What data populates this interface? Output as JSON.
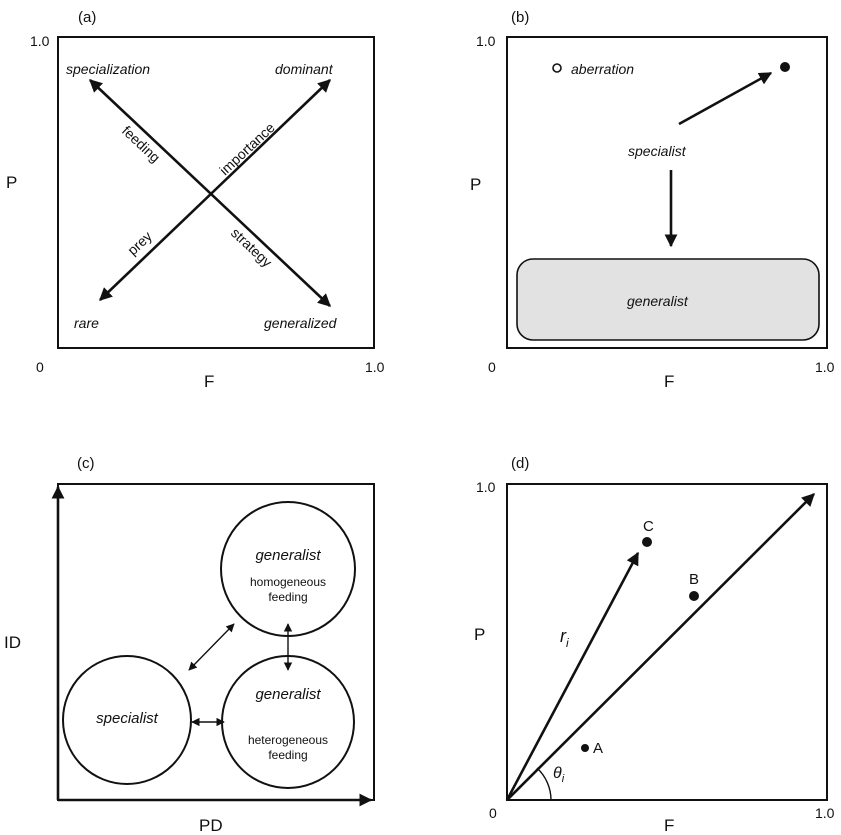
{
  "panel_a": {
    "label": "(a)",
    "y_axis": "P",
    "x_axis": "F",
    "y_max": "1.0",
    "x_min": "0",
    "x_max": "1.0",
    "corner_top_left": "specialization",
    "corner_top_right": "dominant",
    "corner_bottom_left": "rare",
    "corner_bottom_right": "generalized",
    "diag_feeding": "feeding",
    "diag_importance": "importance",
    "diag_prey": "prey",
    "diag_strategy": "strategy"
  },
  "panel_b": {
    "label": "(b)",
    "y_axis": "P",
    "x_axis": "F",
    "y_max": "1.0",
    "x_min": "0",
    "x_max": "1.0",
    "aberration": "aberration",
    "specialist": "specialist",
    "generalist": "generalist"
  },
  "panel_c": {
    "label": "(c)",
    "y_axis": "ID",
    "x_axis": "PD",
    "top_title": "generalist",
    "top_sub": "homogeneous",
    "top_sub2": "feeding",
    "left_title": "specialist",
    "right_title": "generalist",
    "right_sub": "heterogeneous",
    "right_sub2": "feeding"
  },
  "panel_d": {
    "label": "(d)",
    "y_axis": "P",
    "x_axis": "F",
    "y_max": "1.0",
    "x_min": "0",
    "x_max": "1.0",
    "point_a": "A",
    "point_b": "B",
    "point_c": "C",
    "r_label": "r",
    "r_sub": "i",
    "theta_label": "θ",
    "theta_sub": "i"
  },
  "colors": {
    "ink": "#111111",
    "generalist_fill": "#e2e2e2"
  }
}
